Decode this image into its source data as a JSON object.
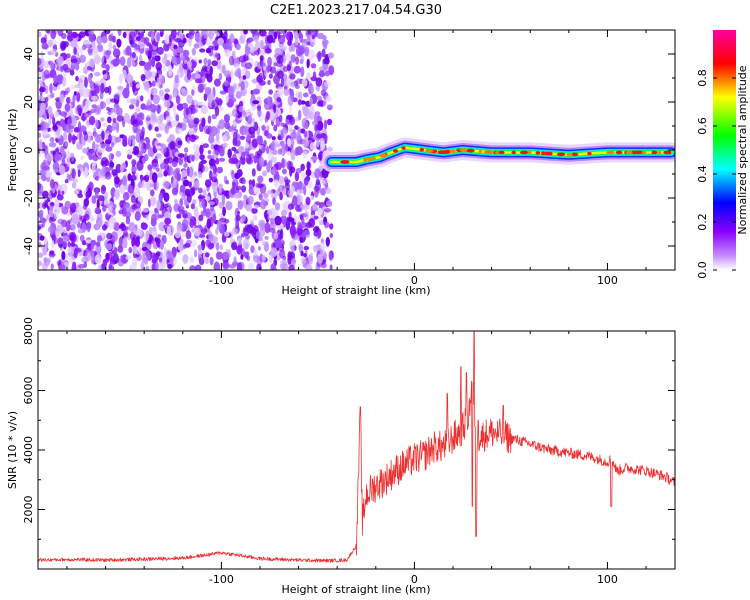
{
  "title": "C2E1.2023.217.04.54.G30",
  "chart_data": [
    {
      "type": "heatmap",
      "xlabel": "Height of straight line (km)",
      "ylabel": "Frequency (Hz)",
      "xlim": [
        -195,
        135
      ],
      "ylim": [
        -50,
        50
      ],
      "xticks": [
        -100,
        0,
        100
      ],
      "yticks": [
        -40,
        -20,
        0,
        20,
        40
      ],
      "noise_region_x": [
        -195,
        -43
      ],
      "signal_track": [
        [
          -43,
          -5
        ],
        [
          -36,
          -5
        ],
        [
          -30,
          -5
        ],
        [
          -25,
          -4
        ],
        [
          -18,
          -3
        ],
        [
          -12,
          -1
        ],
        [
          -5,
          1
        ],
        [
          5,
          0
        ],
        [
          15,
          -1
        ],
        [
          25,
          0
        ],
        [
          40,
          -1
        ],
        [
          60,
          -1
        ],
        [
          80,
          -2
        ],
        [
          100,
          -1
        ],
        [
          120,
          -1
        ],
        [
          133,
          -1
        ]
      ],
      "colorbar": {
        "label": "Normalized spectral amplitude",
        "range": [
          0,
          1
        ],
        "ticks": [
          0.0,
          0.2,
          0.4,
          0.6,
          0.8
        ],
        "colormap": [
          "#ffffff",
          "#8a00ff",
          "#0000ff",
          "#00ffff",
          "#00ff00",
          "#ffff00",
          "#ff0000",
          "#ff00a0"
        ]
      }
    },
    {
      "type": "line",
      "xlabel": "Height of straight line (km)",
      "ylabel": "SNR (10 * v/v)",
      "xlim": [
        -195,
        135
      ],
      "ylim": [
        0,
        8000
      ],
      "xticks": [
        -100,
        0,
        100
      ],
      "yticks": [
        2000,
        4000,
        6000,
        8000
      ],
      "grid": false,
      "color": "#ee3030",
      "x": [
        -195,
        -180,
        -160,
        -140,
        -120,
        -110,
        -100,
        -90,
        -80,
        -60,
        -45,
        -35,
        -30,
        -28,
        -27,
        -25,
        -20,
        -15,
        -10,
        -5,
        0,
        5,
        10,
        15,
        20,
        25,
        28,
        30,
        32,
        34,
        36,
        40,
        50,
        60,
        70,
        80,
        90,
        100,
        102,
        105,
        110,
        120,
        130,
        135
      ],
      "y": [
        300,
        320,
        300,
        330,
        370,
        450,
        550,
        450,
        350,
        300,
        280,
        300,
        800,
        5400,
        1500,
        2500,
        2800,
        3000,
        3300,
        3500,
        3700,
        3800,
        4100,
        4100,
        4400,
        4700,
        5200,
        6200,
        4500,
        4400,
        4500,
        4600,
        4400,
        4200,
        4000,
        3900,
        3800,
        3600,
        3700,
        3300,
        3400,
        3300,
        3100,
        2900
      ],
      "spikes": [
        [
          -28,
          5450
        ],
        [
          17,
          5900
        ],
        [
          24,
          6800
        ],
        [
          27,
          6600
        ],
        [
          30,
          2100
        ],
        [
          31,
          8000
        ],
        [
          32,
          1100
        ],
        [
          33,
          5000
        ],
        [
          46,
          5500
        ],
        [
          102,
          2100
        ]
      ]
    }
  ]
}
